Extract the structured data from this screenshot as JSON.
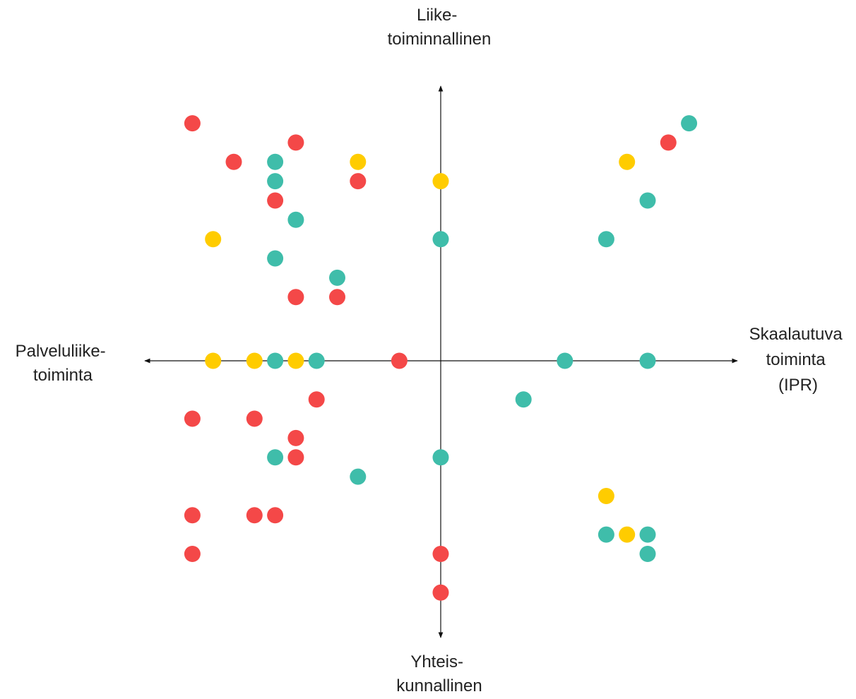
{
  "chart_data": {
    "type": "scatter",
    "title": "",
    "axis_labels": {
      "top": [
        "Liike-",
        "toiminnallinen"
      ],
      "bottom": [
        "Yhteis-",
        "kunnallinen"
      ],
      "left": [
        "Palveluliike-",
        "toiminta"
      ],
      "right": [
        "Skaalautuva",
        "toiminta",
        "(IPR)"
      ]
    },
    "xlim": [
      -12,
      14
    ],
    "ylim": [
      -12,
      14
    ],
    "grid": false,
    "legend": "none",
    "colors": {
      "red": "#F44848",
      "teal": "#3FBDAA",
      "yellow": "#FFCC00",
      "axis": "#111111"
    },
    "points": [
      {
        "x": -12,
        "y": 12.3,
        "color": "red"
      },
      {
        "x": -7,
        "y": 11.3,
        "color": "red"
      },
      {
        "x": -10,
        "y": 10.3,
        "color": "red"
      },
      {
        "x": -8,
        "y": 10.3,
        "color": "teal"
      },
      {
        "x": -4,
        "y": 10.3,
        "color": "yellow"
      },
      {
        "x": -8,
        "y": 9.3,
        "color": "teal"
      },
      {
        "x": -4,
        "y": 9.3,
        "color": "red"
      },
      {
        "x": 0,
        "y": 9.3,
        "color": "yellow"
      },
      {
        "x": -8,
        "y": 8.3,
        "color": "red"
      },
      {
        "x": -7,
        "y": 7.3,
        "color": "teal"
      },
      {
        "x": -11,
        "y": 6.3,
        "color": "yellow"
      },
      {
        "x": 0,
        "y": 6.3,
        "color": "teal"
      },
      {
        "x": -8,
        "y": 5.3,
        "color": "teal"
      },
      {
        "x": -5,
        "y": 4.3,
        "color": "teal"
      },
      {
        "x": -7,
        "y": 3.3,
        "color": "red"
      },
      {
        "x": -5,
        "y": 3.3,
        "color": "red"
      },
      {
        "x": 12,
        "y": 12.3,
        "color": "teal"
      },
      {
        "x": 11,
        "y": 11.3,
        "color": "red"
      },
      {
        "x": 9,
        "y": 10.3,
        "color": "yellow"
      },
      {
        "x": 10,
        "y": 8.3,
        "color": "teal"
      },
      {
        "x": 8,
        "y": 6.3,
        "color": "teal"
      },
      {
        "x": -11,
        "y": 0,
        "color": "yellow"
      },
      {
        "x": -9,
        "y": 0,
        "color": "yellow"
      },
      {
        "x": -8,
        "y": 0,
        "color": "teal"
      },
      {
        "x": -7,
        "y": 0,
        "color": "yellow"
      },
      {
        "x": -6,
        "y": 0,
        "color": "teal"
      },
      {
        "x": -2,
        "y": 0,
        "color": "red"
      },
      {
        "x": 6,
        "y": 0,
        "color": "teal"
      },
      {
        "x": 10,
        "y": 0,
        "color": "teal"
      },
      {
        "x": -6,
        "y": -2,
        "color": "red"
      },
      {
        "x": 4,
        "y": -2,
        "color": "teal"
      },
      {
        "x": -12,
        "y": -3,
        "color": "red"
      },
      {
        "x": -9,
        "y": -3,
        "color": "red"
      },
      {
        "x": -7,
        "y": -4,
        "color": "red"
      },
      {
        "x": -8,
        "y": -5,
        "color": "teal"
      },
      {
        "x": -7,
        "y": -5,
        "color": "red"
      },
      {
        "x": 0,
        "y": -5,
        "color": "teal"
      },
      {
        "x": -4,
        "y": -6,
        "color": "teal"
      },
      {
        "x": 8,
        "y": -7,
        "color": "yellow"
      },
      {
        "x": -12,
        "y": -8,
        "color": "red"
      },
      {
        "x": -9,
        "y": -8,
        "color": "red"
      },
      {
        "x": -8,
        "y": -8,
        "color": "red"
      },
      {
        "x": 8,
        "y": -9,
        "color": "teal"
      },
      {
        "x": 9,
        "y": -9,
        "color": "yellow"
      },
      {
        "x": 10,
        "y": -9,
        "color": "teal"
      },
      {
        "x": 10,
        "y": -10,
        "color": "teal"
      },
      {
        "x": -12,
        "y": -10,
        "color": "red"
      },
      {
        "x": 0,
        "y": -10,
        "color": "red"
      },
      {
        "x": 0,
        "y": -12,
        "color": "red"
      }
    ]
  }
}
